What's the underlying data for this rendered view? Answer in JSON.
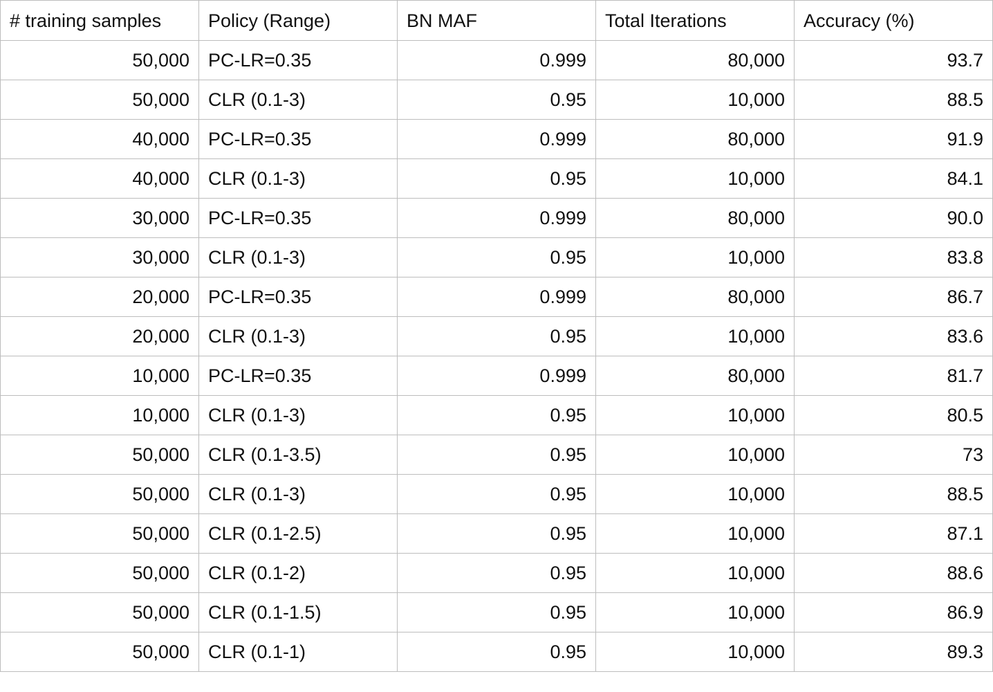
{
  "table": {
    "headers": [
      "# training samples",
      "Policy (Range)",
      "BN MAF",
      "Total Iterations",
      "Accuracy (%)"
    ],
    "rows": [
      [
        "50,000",
        "PC-LR=0.35",
        "0.999",
        "80,000",
        "93.7"
      ],
      [
        "50,000",
        "CLR (0.1-3)",
        "0.95",
        "10,000",
        "88.5"
      ],
      [
        "40,000",
        "PC-LR=0.35",
        "0.999",
        "80,000",
        "91.9"
      ],
      [
        "40,000",
        "CLR (0.1-3)",
        "0.95",
        "10,000",
        "84.1"
      ],
      [
        "30,000",
        "PC-LR=0.35",
        "0.999",
        "80,000",
        "90.0"
      ],
      [
        "30,000",
        "CLR (0.1-3)",
        "0.95",
        "10,000",
        "83.8"
      ],
      [
        "20,000",
        "PC-LR=0.35",
        "0.999",
        "80,000",
        "86.7"
      ],
      [
        "20,000",
        "CLR (0.1-3)",
        "0.95",
        "10,000",
        "83.6"
      ],
      [
        "10,000",
        "PC-LR=0.35",
        "0.999",
        "80,000",
        "81.7"
      ],
      [
        "10,000",
        "CLR (0.1-3)",
        "0.95",
        "10,000",
        "80.5"
      ],
      [
        "50,000",
        "CLR (0.1-3.5)",
        "0.95",
        "10,000",
        "73"
      ],
      [
        "50,000",
        "CLR (0.1-3)",
        "0.95",
        "10,000",
        "88.5"
      ],
      [
        "50,000",
        "CLR (0.1-2.5)",
        "0.95",
        "10,000",
        "87.1"
      ],
      [
        "50,000",
        "CLR (0.1-2)",
        "0.95",
        "10,000",
        "88.6"
      ],
      [
        "50,000",
        "CLR (0.1-1.5)",
        "0.95",
        "10,000",
        "86.9"
      ],
      [
        "50,000",
        "CLR (0.1-1)",
        "0.95",
        "10,000",
        "89.3"
      ]
    ]
  }
}
